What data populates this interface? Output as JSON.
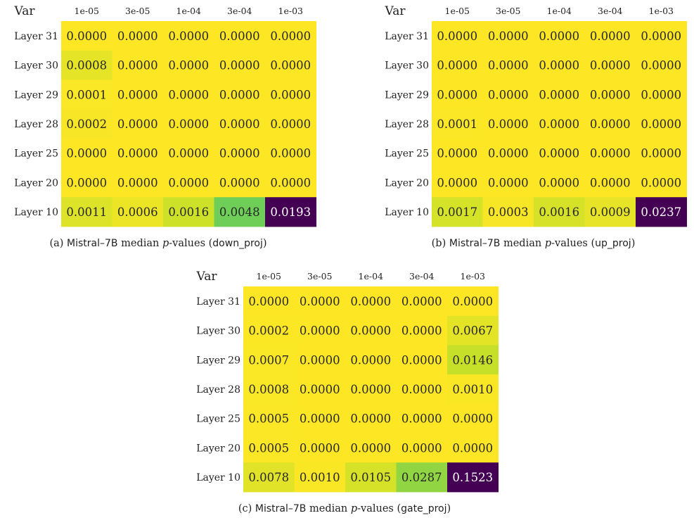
{
  "chart_data": [
    {
      "type": "heatmap",
      "caption": {
        "label": "(a)",
        "model": "Mistral–7B",
        "text": "median",
        "var": "p",
        "suffix": "-values",
        "proj": "down_proj"
      },
      "corner_label": "Var",
      "columns": [
        "1e-05",
        "3e-05",
        "1e-04",
        "3e-04",
        "1e-03"
      ],
      "rows": [
        "Layer 31",
        "Layer 30",
        "Layer 29",
        "Layer 28",
        "Layer 25",
        "Layer 20",
        "Layer 10"
      ],
      "values": [
        [
          0.0,
          0.0,
          0.0,
          0.0,
          0.0
        ],
        [
          0.0008,
          0.0,
          0.0,
          0.0,
          0.0
        ],
        [
          0.0001,
          0.0,
          0.0,
          0.0,
          0.0
        ],
        [
          0.0002,
          0.0,
          0.0,
          0.0,
          0.0
        ],
        [
          0.0,
          0.0,
          0.0,
          0.0,
          0.0
        ],
        [
          0.0,
          0.0,
          0.0,
          0.0,
          0.0
        ],
        [
          0.0011,
          0.0006,
          0.0016,
          0.0048,
          0.0193
        ]
      ],
      "colormap": "viridis-reversed"
    },
    {
      "type": "heatmap",
      "caption": {
        "label": "(b)",
        "model": "Mistral–7B",
        "text": "median",
        "var": "p",
        "suffix": "-values",
        "proj": "up_proj"
      },
      "corner_label": "Var",
      "columns": [
        "1e-05",
        "3e-05",
        "1e-04",
        "3e-04",
        "1e-03"
      ],
      "rows": [
        "Layer 31",
        "Layer 30",
        "Layer 29",
        "Layer 28",
        "Layer 25",
        "Layer 20",
        "Layer 10"
      ],
      "values": [
        [
          0.0,
          0.0,
          0.0,
          0.0,
          0.0
        ],
        [
          0.0,
          0.0,
          0.0,
          0.0,
          0.0
        ],
        [
          0.0,
          0.0,
          0.0,
          0.0,
          0.0
        ],
        [
          0.0001,
          0.0,
          0.0,
          0.0,
          0.0
        ],
        [
          0.0,
          0.0,
          0.0,
          0.0,
          0.0
        ],
        [
          0.0,
          0.0,
          0.0,
          0.0,
          0.0
        ],
        [
          0.0017,
          0.0003,
          0.0016,
          0.0009,
          0.0237
        ]
      ],
      "colormap": "viridis-reversed"
    },
    {
      "type": "heatmap",
      "caption": {
        "label": "(c)",
        "model": "Mistral–7B",
        "text": "median",
        "var": "p",
        "suffix": "-values",
        "proj": "gate_proj"
      },
      "corner_label": "Var",
      "columns": [
        "1e-05",
        "3e-05",
        "1e-04",
        "3e-04",
        "1e-03"
      ],
      "rows": [
        "Layer 31",
        "Layer 30",
        "Layer 29",
        "Layer 28",
        "Layer 25",
        "Layer 20",
        "Layer 10"
      ],
      "values": [
        [
          0.0,
          0.0,
          0.0,
          0.0,
          0.0
        ],
        [
          0.0002,
          0.0,
          0.0,
          0.0,
          0.0067
        ],
        [
          0.0007,
          0.0,
          0.0,
          0.0,
          0.0146
        ],
        [
          0.0008,
          0.0,
          0.0,
          0.0,
          0.001
        ],
        [
          0.0005,
          0.0,
          0.0,
          0.0,
          0.0
        ],
        [
          0.0005,
          0.0,
          0.0,
          0.0,
          0.0
        ],
        [
          0.0078,
          0.001,
          0.0105,
          0.0287,
          0.1523
        ]
      ],
      "colormap": "viridis-reversed"
    }
  ]
}
